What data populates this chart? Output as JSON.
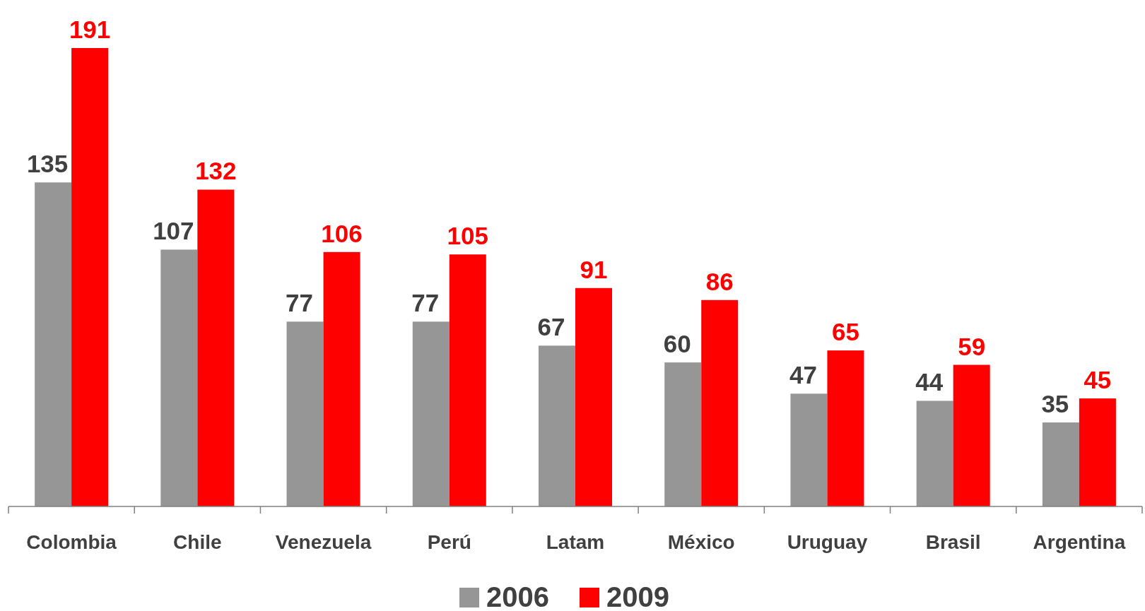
{
  "chart_data": {
    "type": "bar",
    "categories": [
      "Colombia",
      "Chile",
      "Venezuela",
      "Perú",
      "Latam",
      "México",
      "Uruguay",
      "Brasil",
      "Argentina"
    ],
    "series": [
      {
        "name": "2006",
        "color": "#969696",
        "values": [
          135,
          107,
          77,
          77,
          67,
          60,
          47,
          44,
          35
        ]
      },
      {
        "name": "2009",
        "color": "#ff0000",
        "values": [
          191,
          132,
          106,
          105,
          91,
          86,
          65,
          59,
          45
        ]
      }
    ],
    "data_labels": true,
    "legend": "bottom"
  }
}
